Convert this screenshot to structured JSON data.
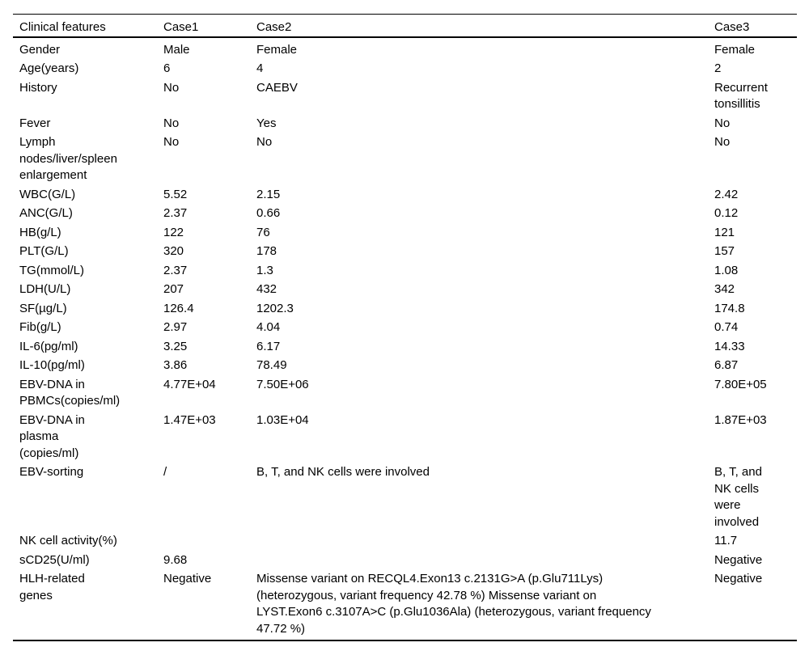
{
  "page": {
    "background_color": "#ffffff",
    "text_color": "#000000",
    "rule_color": "#000000"
  },
  "table": {
    "columns": [
      "Clinical features",
      "Case1",
      "Case2",
      "Case3"
    ],
    "rows": [
      {
        "feature": "Gender",
        "case1": "Male",
        "case2": "Female",
        "case3": "Female"
      },
      {
        "feature": "Age(years)",
        "case1": "6",
        "case2": "4",
        "case3": "2"
      },
      {
        "feature": "History",
        "case1": "No",
        "case2": "CAEBV",
        "case3": "Recurrent\ntonsillitis"
      },
      {
        "feature": "Fever",
        "case1": "No",
        "case2": "Yes",
        "case3": "No"
      },
      {
        "feature": "Lymph\nnodes/liver/spleen\nenlargement",
        "case1": "No",
        "case2": "No",
        "case3": "No"
      },
      {
        "feature": "WBC(G/L)",
        "case1": "5.52",
        "case2": "2.15",
        "case3": "2.42"
      },
      {
        "feature": "ANC(G/L)",
        "case1": "2.37",
        "case2": "0.66",
        "case3": "0.12"
      },
      {
        "feature": "HB(g/L)",
        "case1": "122",
        "case2": "76",
        "case3": "121"
      },
      {
        "feature": "PLT(G/L)",
        "case1": "320",
        "case2": "178",
        "case3": "157"
      },
      {
        "feature": "TG(mmol/L)",
        "case1": "2.37",
        "case2": "1.3",
        "case3": "1.08"
      },
      {
        "feature": "LDH(U/L)",
        "case1": "207",
        "case2": "432",
        "case3": "342"
      },
      {
        "feature": "SF(µg/L)",
        "case1": "126.4",
        "case2": "1202.3",
        "case3": "174.8"
      },
      {
        "feature": "Fib(g/L)",
        "case1": "2.97",
        "case2": "4.04",
        "case3": "0.74"
      },
      {
        "feature": "IL-6(pg/ml)",
        "case1": "3.25",
        "case2": "6.17",
        "case3": "14.33"
      },
      {
        "feature": "IL-10(pg/ml)",
        "case1": "3.86",
        "case2": "78.49",
        "case3": "6.87"
      },
      {
        "feature": "EBV-DNA in\nPBMCs(copies/ml)",
        "case1": "4.77E+04",
        "case2": "7.50E+06",
        "case3": "7.80E+05"
      },
      {
        "feature": "EBV-DNA in\nplasma\n(copies/ml)",
        "case1": "1.47E+03",
        "case2": "1.03E+04",
        "case3": "1.87E+03"
      },
      {
        "feature": "EBV-sorting",
        "case1": "/",
        "case2": "B, T, and NK cells were involved",
        "case3": "B, T, and\nNK cells\nwere\ninvolved"
      },
      {
        "feature": "NK cell activity(%)",
        "case1": "",
        "case2": "",
        "case3": "11.7"
      },
      {
        "feature": "sCD25(U/ml)",
        "case1": "9.68",
        "case2": "",
        "case3": "Negative"
      },
      {
        "feature": "HLH-related\ngenes",
        "case1": "Negative",
        "case2": "Missense variant on RECQL4.Exon13 c.2131G>A (p.Glu711Lys)\n(heterozygous, variant frequency 42.78 %) Missense variant on\nLYST.Exon6 c.3107A>C (p.Glu1036Ala) (heterozygous, variant frequency\n47.72 %)",
        "case3": "Negative"
      }
    ]
  }
}
